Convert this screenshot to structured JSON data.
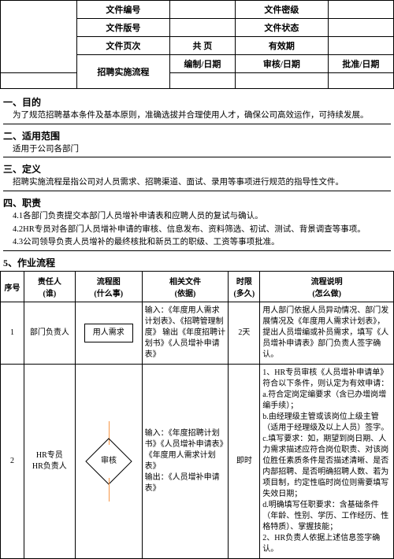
{
  "header": {
    "rows": [
      {
        "l1": "文件编号",
        "v1": "",
        "l2": "文件密级",
        "v2": ""
      },
      {
        "l1": "文件版号",
        "v1": "",
        "l2": "文件状态",
        "v2": ""
      },
      {
        "l1": "文件页次",
        "v1": "共 页",
        "l2": "有效期",
        "v2": ""
      }
    ],
    "title": "招聘实施流程",
    "sig1": "编制/日期",
    "sig2": "审核/日期",
    "sig3": "批准/日期"
  },
  "sections": {
    "s1h": "一、目的",
    "s1p": "为了规范招聘基本条件及基本原则，准确选拔并合理使用人才，确保公司高效运作，可持续发展。",
    "s2h": "二、适用范围",
    "s2p": "适用于公司各部门",
    "s3h": "三、定义",
    "s3p": "招聘实施流程是指公司对人员需求、招聘渠道、面试、录用等事项进行规范的指导性文件。",
    "s4h": "四、职责",
    "s4p1": "4.1各部门负责提交本部门人员增补申请表和应聘人员的复试与确认。",
    "s4p2": "4.2HR专员对各部门人员增补申请的审核、信息发布、资料筛选、初试、测试、背景调查等事项。",
    "s4p3": "4.3公司领导负责人员增补的最终核批和新员工的职级、工资等事项批准。",
    "s5h": "5、作业流程"
  },
  "flow": {
    "cols": {
      "c1": "序号",
      "c2a": "责任人",
      "c2b": "(谁)",
      "c3a": "流程图",
      "c3b": "(什么事)",
      "c4a": "相关文件",
      "c4b": "(依据)",
      "c5a": "时限",
      "c5b": "(多久)",
      "c6a": "流程说明",
      "c6b": "(怎么做)"
    },
    "r1": {
      "seq": "1",
      "who": "部门负责人",
      "node": "用人需求",
      "doc": "输入：《年度用人需求计划表》、《招聘管理制度》\n输出《年度招聘计划书》《人员增补申请表》",
      "time": "2天",
      "desc": "用人部门依据人员异动情况、部门发展情况及《年度用人需求计划表》，提出人员增编或补员需求，填写《人员增补申请表》部门负责人签字确认。"
    },
    "r2": {
      "seq": "2",
      "who": "HR专员\nHR负责人",
      "node": "审核",
      "doc": "输入：《年度招聘计划书》《人员增补申请表》《年度用人需求计划表》\n输出：《人员增补申请表》",
      "time": "即时",
      "desc": "1、HR专员审核《人员增补申请单》符合以下条件，则认定为有效申请：\na.符合定岗定编要求（含已办增岗增编手续）；\nb.由经理级主管或该岗位上级主管（适用于经理级及以上人员）签字。\nc.填写要求：如，期望到岗日期、人力需求描述应符合岗位职责、对该岗位胜任素质条件是否描述清晰、是否内部招聘、是否明确招聘人数、若为项目制，约定性临时岗位则需要填写失效日期；\nd.明确填写任职要求：含基础条件（年龄、性别、学历、工作经历、性格特质）、掌握技能；\n2、HR负责人依据上述信息签字确认。"
    }
  }
}
